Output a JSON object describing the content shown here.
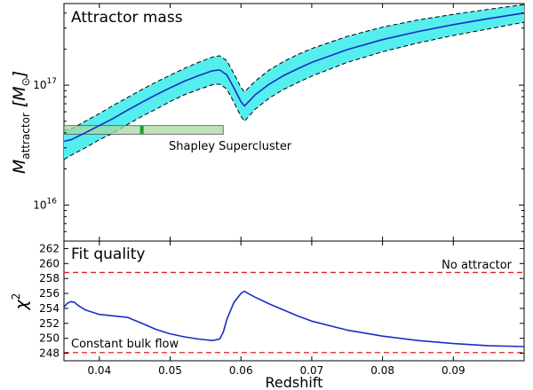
{
  "chart_data": [
    {
      "type": "line",
      "title": "Attractor mass",
      "xlabel": "",
      "ylabel": "M_attractor [M_⊙]",
      "ylabel_main": "M",
      "ylabel_sub": "attractor",
      "ylabel_unit": "[M",
      "ylabel_unit_sub": "⊙",
      "ylabel_unit_close": "]",
      "y_scale": "log",
      "xlim": [
        0.035,
        0.1
      ],
      "ylim": [
        5000000000000000.0,
        4.8e+17
      ],
      "yticks": [
        {
          "value": 1e+16,
          "base": "10",
          "exp": "16"
        },
        {
          "value": 1e+17,
          "base": "10",
          "exp": "17"
        }
      ],
      "series": [
        {
          "name": "mass",
          "color": "#1a2cc8",
          "x": [
            0.035,
            0.036,
            0.038,
            0.04,
            0.042,
            0.044,
            0.046,
            0.048,
            0.05,
            0.052,
            0.054,
            0.056,
            0.057,
            0.058,
            0.059,
            0.06,
            0.0605,
            0.061,
            0.062,
            0.064,
            0.066,
            0.068,
            0.07,
            0.075,
            0.08,
            0.085,
            0.09,
            0.095,
            0.1
          ],
          "values": [
            3.4e+16,
            3.5e+16,
            4e+16,
            4.6e+16,
            5.3e+16,
            6.2e+16,
            7.2e+16,
            8.3e+16,
            9.5e+16,
            1.08e+17,
            1.2e+17,
            1.32e+17,
            1.34e+17,
            1.22e+17,
            9.5e+16,
            7.3e+16,
            6.7e+16,
            7.2e+16,
            8.3e+16,
            1.02e+17,
            1.2e+17,
            1.37e+17,
            1.55e+17,
            1.98e+17,
            2.4e+17,
            2.8e+17,
            3.2e+17,
            3.6e+17,
            4e+17
          ]
        }
      ],
      "band": {
        "name": "uncertainty",
        "fill": "#55eeee",
        "edge": "#000000",
        "upper": [
          4.2e+16,
          4.3e+16,
          5e+16,
          5.8e+16,
          6.8e+16,
          7.9e+16,
          9.2e+16,
          1.06e+17,
          1.21e+17,
          1.38e+17,
          1.55e+17,
          1.72e+17,
          1.76e+17,
          1.6e+17,
          1.25e+17,
          9.6e+16,
          8.8e+16,
          9.4e+16,
          1.08e+17,
          1.34e+17,
          1.57e+17,
          1.8e+17,
          2.02e+17,
          2.55e+17,
          3.05e+17,
          3.5e+17,
          3.9e+17,
          4.3e+17,
          4.7e+17
        ],
        "lower": [
          2.4e+16,
          2.6e+16,
          3e+16,
          3.5e+16,
          4e+16,
          4.7e+16,
          5.5e+16,
          6.3e+16,
          7.3e+16,
          8.3e+16,
          9.2e+16,
          1.01e+17,
          1.02e+17,
          9.3e+16,
          7.2e+16,
          5.5e+16,
          5e+16,
          5.4e+16,
          6.3e+16,
          7.8e+16,
          9.2e+16,
          1.05e+17,
          1.19e+17,
          1.55e+17,
          1.9e+17,
          2.25e+17,
          2.6e+17,
          2.95e+17,
          3.35e+17
        ]
      },
      "annotation": {
        "label": "Shapley Supercluster",
        "x_start": 0.035,
        "x_end": 0.0575,
        "y_low": 3.9e+16,
        "y_high": 4.6e+16,
        "marker_x": 0.046,
        "fill": "#a8d8a0",
        "marker_color": "#1f9a2a"
      }
    },
    {
      "type": "line",
      "title": "Fit quality",
      "xlabel": "Redshift",
      "ylabel": "χ²",
      "ylabel_main": "χ",
      "ylabel_sup": "2",
      "xlim": [
        0.035,
        0.1
      ],
      "ylim": [
        247,
        263
      ],
      "yticks": [
        248,
        250,
        252,
        254,
        256,
        258,
        260,
        262
      ],
      "xticks": [
        {
          "value": 0.04,
          "label": "0.04"
        },
        {
          "value": 0.05,
          "label": "0.05"
        },
        {
          "value": 0.06,
          "label": "0.06"
        },
        {
          "value": 0.07,
          "label": "0.07"
        },
        {
          "value": 0.08,
          "label": "0.08"
        },
        {
          "value": 0.09,
          "label": "0.09"
        }
      ],
      "series": [
        {
          "name": "chi2",
          "color": "#1a2cc8",
          "x": [
            0.035,
            0.0355,
            0.036,
            0.0365,
            0.037,
            0.038,
            0.04,
            0.042,
            0.044,
            0.046,
            0.048,
            0.05,
            0.052,
            0.054,
            0.056,
            0.057,
            0.0575,
            0.058,
            0.059,
            0.06,
            0.0605,
            0.061,
            0.062,
            0.064,
            0.066,
            0.068,
            0.07,
            0.075,
            0.08,
            0.085,
            0.09,
            0.095,
            0.1
          ],
          "values": [
            254.2,
            254.7,
            254.9,
            254.8,
            254.4,
            253.8,
            253.2,
            253.0,
            252.8,
            252.0,
            251.2,
            250.6,
            250.2,
            249.9,
            249.7,
            249.9,
            250.8,
            252.5,
            254.8,
            256.0,
            256.3,
            256.0,
            255.5,
            254.6,
            253.8,
            253.0,
            252.3,
            251.1,
            250.3,
            249.7,
            249.3,
            249.0,
            248.9
          ]
        }
      ],
      "reference_lines": [
        {
          "label": "No attractor",
          "value": 258.8,
          "color": "#e02020",
          "label_position": "right"
        },
        {
          "label": "Constant bulk flow",
          "value": 248.1,
          "color": "#e02020",
          "label_position": "left"
        }
      ]
    }
  ]
}
